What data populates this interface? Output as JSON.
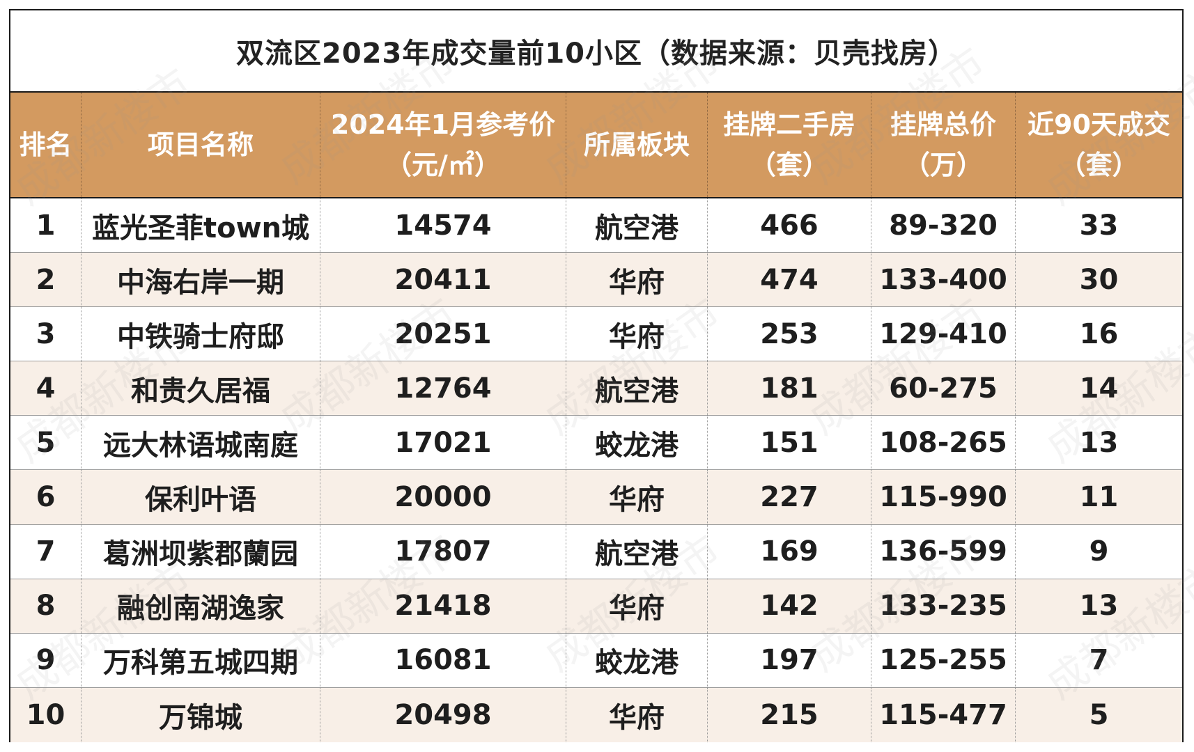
{
  "title": "双流区2023年成交量前10小区（数据来源：贝壳找房）",
  "headers": [
    {
      "line1": "排名",
      "line2": ""
    },
    {
      "line1": "项目名称",
      "line2": ""
    },
    {
      "line1": "2024年1月参考价",
      "line2": "（元/㎡）"
    },
    {
      "line1": "所属板块",
      "line2": ""
    },
    {
      "line1": "挂牌二手房",
      "line2": "（套）"
    },
    {
      "line1": "挂牌总价",
      "line2": "（万）"
    },
    {
      "line1": "近90天成交",
      "line2": "（套）"
    }
  ],
  "rows": [
    {
      "rank": "1",
      "name": "蓝光圣菲town城",
      "price": "14574",
      "district": "航空港",
      "listings": "466",
      "total": "89-320",
      "deals": "33"
    },
    {
      "rank": "2",
      "name": "中海右岸一期",
      "price": "20411",
      "district": "华府",
      "listings": "474",
      "total": "133-400",
      "deals": "30"
    },
    {
      "rank": "3",
      "name": "中铁骑士府邸",
      "price": "20251",
      "district": "华府",
      "listings": "253",
      "total": "129-410",
      "deals": "16"
    },
    {
      "rank": "4",
      "name": "和贵久居福",
      "price": "12764",
      "district": "航空港",
      "listings": "181",
      "total": "60-275",
      "deals": "14"
    },
    {
      "rank": "5",
      "name": "远大林语城南庭",
      "price": "17021",
      "district": "蛟龙港",
      "listings": "151",
      "total": "108-265",
      "deals": "13"
    },
    {
      "rank": "6",
      "name": "保利叶语",
      "price": "20000",
      "district": "华府",
      "listings": "227",
      "total": "115-990",
      "deals": "11"
    },
    {
      "rank": "7",
      "name": "葛洲坝紫郡蘭园",
      "price": "17807",
      "district": "航空港",
      "listings": "169",
      "total": "136-599",
      "deals": "9"
    },
    {
      "rank": "8",
      "name": "融创南湖逸家",
      "price": "21418",
      "district": "华府",
      "listings": "142",
      "total": "133-235",
      "deals": "13"
    },
    {
      "rank": "9",
      "name": "万科第五城四期",
      "price": "16081",
      "district": "蛟龙港",
      "listings": "197",
      "total": "125-255",
      "deals": "7"
    },
    {
      "rank": "10",
      "name": "万锦城",
      "price": "20498",
      "district": "华府",
      "listings": "215",
      "total": "115-477",
      "deals": "5"
    }
  ],
  "watermark": "成都新楼市",
  "colors": {
    "header_bg": "#d39a60",
    "alt_row_bg": "#f8efe7",
    "border": "#1a1a1a"
  }
}
